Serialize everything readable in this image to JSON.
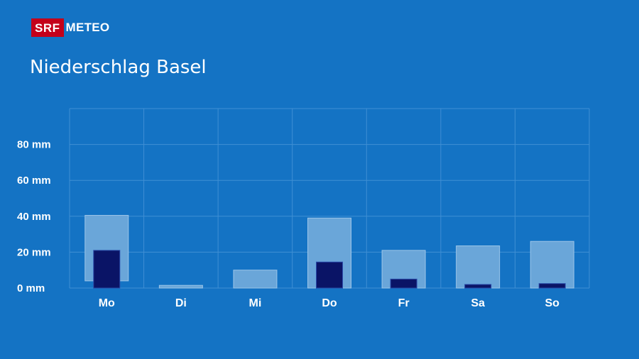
{
  "brand": {
    "srf": "SRF",
    "meteo": "METEO"
  },
  "title": "Niederschlag Basel",
  "colors": {
    "background": "#1473c4",
    "range_bar": "#6aa6d9",
    "value_bar": "#0a1466",
    "grid": "#3f8fd4",
    "logo_red": "#c4001a"
  },
  "chart_data": {
    "type": "bar",
    "categories": [
      "Mo",
      "Di",
      "Mi",
      "Do",
      "Fr",
      "Sa",
      "So"
    ],
    "series": [
      {
        "values": [
          4,
          0,
          0,
          0,
          0,
          0,
          0
        ],
        "low": [
          4,
          0,
          0,
          0,
          0,
          0,
          0
        ],
        "high": [
          40.5,
          1.5,
          10,
          39,
          21,
          23.5,
          26
        ]
      },
      {
        "values": [
          21,
          0,
          0,
          14.5,
          5,
          2,
          2.5
        ]
      }
    ],
    "y_tick_labels": [
      "0 mm",
      "20 mm",
      "40 mm",
      "60 mm",
      "80 mm"
    ],
    "y_ticks": [
      0,
      20,
      40,
      60,
      80
    ],
    "ylim": [
      0,
      100
    ],
    "grid": true
  }
}
